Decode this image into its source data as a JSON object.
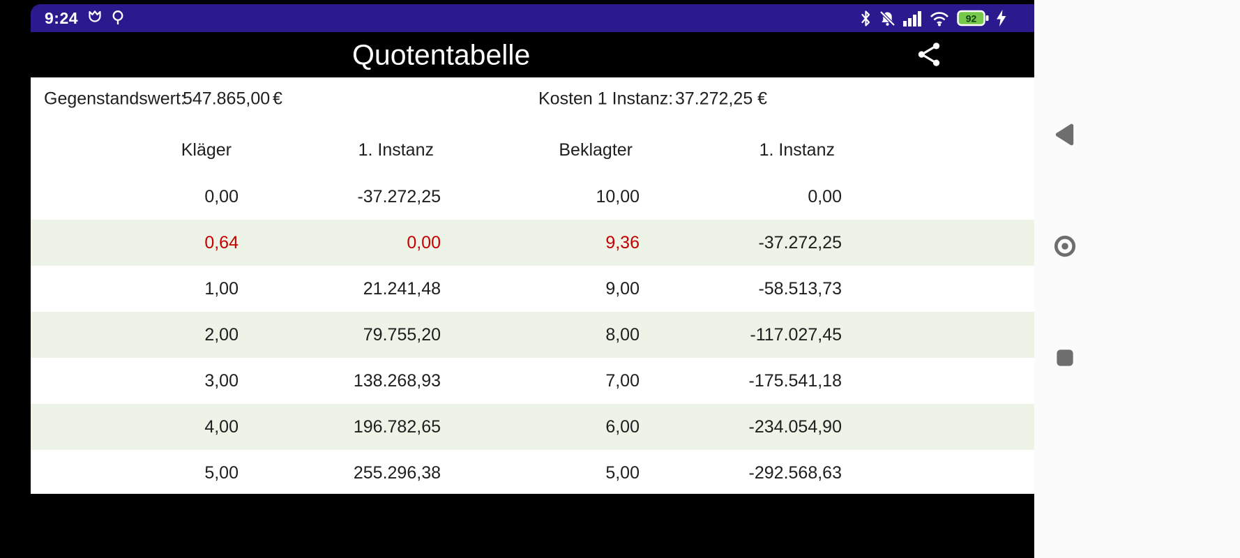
{
  "status_bar": {
    "time": "9:24",
    "battery_level": "92",
    "colors": {
      "background": "#2b1a8e",
      "battery_fill": "#77c94c"
    },
    "icons": [
      "tulip-icon",
      "circle-tail-icon",
      "bluetooth-icon",
      "notifications-muted-icon",
      "signal-strength-icon",
      "wifi-icon",
      "battery-icon",
      "charging-bolt-icon"
    ]
  },
  "app_bar": {
    "title": "Quotentabelle",
    "background": "#000000",
    "icons": [
      "share-icon"
    ]
  },
  "summary": {
    "left_label": "Gegenstandswert:",
    "left_value": "547.865,00",
    "left_currency": "€",
    "right_label": "Kosten 1 Instanz:",
    "right_value": "37.272,25 €"
  },
  "table": {
    "headers": [
      "Kläger",
      "1. Instanz",
      "Beklagter",
      "1. Instanz"
    ],
    "rows": [
      {
        "cells": [
          "0,00",
          "-37.272,25",
          "10,00",
          "0,00"
        ],
        "highlight": false,
        "red_cells": []
      },
      {
        "cells": [
          "0,64",
          "0,00",
          "9,36",
          "-37.272,25"
        ],
        "highlight": true,
        "red_cells": [
          0,
          1,
          2
        ]
      },
      {
        "cells": [
          "1,00",
          "21.241,48",
          "9,00",
          "-58.513,73"
        ],
        "highlight": false,
        "red_cells": []
      },
      {
        "cells": [
          "2,00",
          "79.755,20",
          "8,00",
          "-117.027,45"
        ],
        "highlight": true,
        "red_cells": []
      },
      {
        "cells": [
          "3,00",
          "138.268,93",
          "7,00",
          "-175.541,18"
        ],
        "highlight": false,
        "red_cells": []
      },
      {
        "cells": [
          "4,00",
          "196.782,65",
          "6,00",
          "-234.054,90"
        ],
        "highlight": true,
        "red_cells": []
      },
      {
        "cells": [
          "5,00",
          "255.296,38",
          "5,00",
          "-292.568,63"
        ],
        "highlight": false,
        "red_cells": []
      }
    ],
    "colors": {
      "highlight_row": "#edf3e7",
      "red_text": "#c60000"
    }
  },
  "nav_bar": {
    "buttons": [
      "back",
      "home",
      "recents"
    ]
  }
}
